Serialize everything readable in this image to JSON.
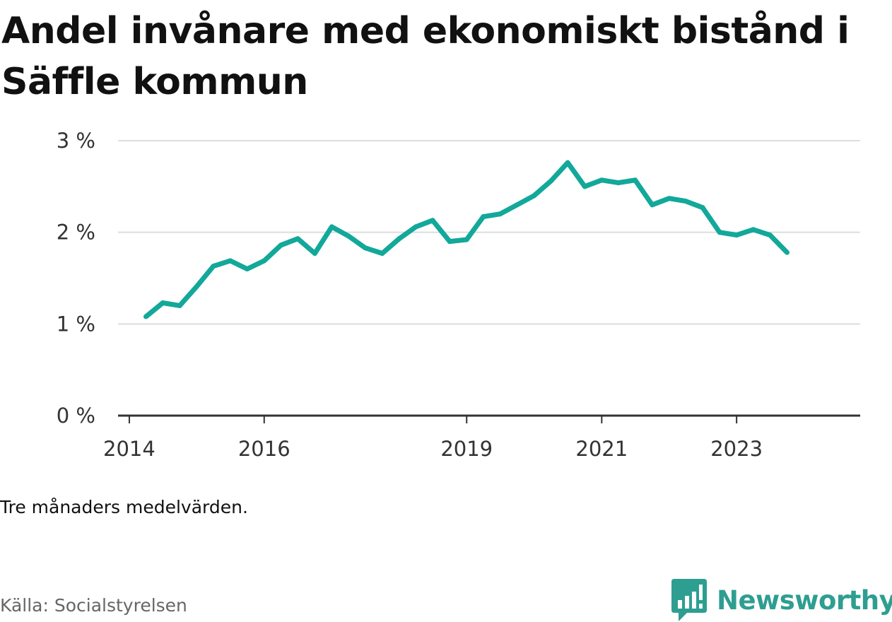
{
  "title": "Andel invånare med ekonomiskt bistånd i Säffle kommun",
  "note": "Tre månaders medelvärden.",
  "source": "Källa: Socialstyrelsen",
  "brand": {
    "name": "Newsworthy",
    "icon": "newsworthy-logo-icon"
  },
  "colors": {
    "line": "#12a89a",
    "grid": "#dddddd",
    "axis": "#333333",
    "brand": "#2e9e91"
  },
  "chart_data": {
    "type": "line",
    "title": "Andel invånare med ekonomiskt bistånd i Säffle kommun",
    "xlabel": "",
    "ylabel": "",
    "ylim": [
      0,
      3
    ],
    "xlim": [
      "2013-11-01",
      "2024-10-31"
    ],
    "y_ticks": [
      0,
      1,
      2,
      3
    ],
    "y_tick_labels": [
      "0 %",
      "1 %",
      "2 %",
      "3 %"
    ],
    "x_ticks": [
      "2014-01-01",
      "2016-01-01",
      "2019-01-01",
      "2021-01-01",
      "2023-01-01"
    ],
    "x_tick_labels": [
      "2014",
      "2016",
      "2019",
      "2021",
      "2023"
    ],
    "grid": true,
    "legend": "none",
    "series": [
      {
        "x": [
          "2014-04-01",
          "2014-07-01",
          "2014-10-01",
          "2015-01-01",
          "2015-04-01",
          "2015-07-01",
          "2015-10-01",
          "2016-01-01",
          "2016-04-01",
          "2016-07-01",
          "2016-10-01",
          "2017-01-01",
          "2017-04-01",
          "2017-07-01",
          "2017-10-01",
          "2018-01-01",
          "2018-04-01",
          "2018-07-01",
          "2018-10-01",
          "2019-01-01",
          "2019-04-01",
          "2019-07-01",
          "2019-10-01",
          "2020-01-01",
          "2020-04-01",
          "2020-07-01",
          "2020-10-01",
          "2021-01-01",
          "2021-04-01",
          "2021-07-01",
          "2021-10-01",
          "2022-01-01",
          "2022-04-01",
          "2022-07-01",
          "2022-10-01",
          "2023-01-01",
          "2023-04-01",
          "2023-07-01",
          "2023-10-01"
        ],
        "values": [
          1.08,
          1.23,
          1.2,
          1.41,
          1.63,
          1.69,
          1.6,
          1.69,
          1.86,
          1.93,
          1.77,
          2.06,
          1.96,
          1.83,
          1.77,
          1.93,
          2.06,
          2.13,
          1.9,
          1.92,
          2.17,
          2.2,
          2.3,
          2.4,
          2.56,
          2.76,
          2.5,
          2.57,
          2.54,
          2.57,
          2.3,
          2.37,
          2.34,
          2.27,
          2.0,
          1.97,
          2.03,
          1.97,
          1.78
        ]
      }
    ]
  }
}
